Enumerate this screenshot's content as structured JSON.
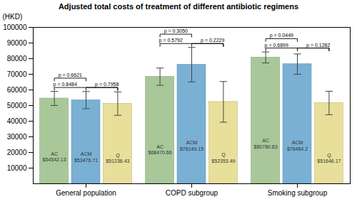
{
  "chart_data": {
    "type": "bar",
    "title": "Adjusted total costs of treatment of different antibiotic regimens",
    "ylabel": "(HKD)",
    "categories": [
      "General population",
      "COPD subgroup",
      "Smoking subgroup"
    ],
    "series": [
      {
        "name": "AC",
        "color": "#a8c89a",
        "values": [
          54542.13,
          68470.66,
          80780.83
        ],
        "errors": [
          4500,
          5500,
          3500
        ],
        "value_labels": [
          "AC\n$54542.13",
          "AC\n$68470.66",
          "AC\n$80780.83"
        ]
      },
      {
        "name": "ACM",
        "color": "#7ab0d4",
        "values": [
          53476.71,
          76149.15,
          76484.2
        ],
        "errors": [
          5500,
          11000,
          6500
        ],
        "value_labels": [
          "ACM\n$53476.71",
          "ACM\n$76149.15",
          "ACM\n$76484.2"
        ]
      },
      {
        "name": "Q",
        "color": "#e8e09a",
        "values": [
          51236.43,
          52353.49,
          51646.17
        ],
        "errors": [
          7500,
          13000,
          7500
        ],
        "value_labels": [
          "Q\n$51236.43",
          "Q\n$52353.49",
          "Q\n$51646.17"
        ]
      }
    ],
    "ylim": [
      0,
      100000
    ],
    "yticks": [
      10000,
      20000,
      30000,
      40000,
      50000,
      60000,
      70000,
      80000,
      90000,
      100000
    ],
    "grid": false,
    "data_labels": true,
    "annotations": [
      {
        "category": "General population",
        "between": [
          "AC",
          "ACM"
        ],
        "text": "p = 0.6621"
      },
      {
        "category": "General population",
        "between": [
          "AC",
          "Q"
        ],
        "text": "p = 0.8484"
      },
      {
        "category": "General population",
        "between": [
          "ACM",
          "Q"
        ],
        "text": "p = 0.7958"
      },
      {
        "category": "COPD subgroup",
        "between": [
          "AC",
          "ACM"
        ],
        "text": "p = 0.3050"
      },
      {
        "category": "COPD subgroup",
        "between": [
          "AC",
          "Q"
        ],
        "text": "p = 0.5792"
      },
      {
        "category": "COPD subgroup",
        "between": [
          "ACM",
          "Q"
        ],
        "text": "p = 0.2229"
      },
      {
        "category": "Smoking subgroup",
        "between": [
          "AC",
          "ACM"
        ],
        "text": "p = 0.0449"
      },
      {
        "category": "Smoking subgroup",
        "between": [
          "AC",
          "Q"
        ],
        "text": "p = 0.6899"
      },
      {
        "category": "Smoking subgroup",
        "between": [
          "ACM",
          "Q"
        ],
        "text": "p = 0.1282"
      }
    ]
  }
}
